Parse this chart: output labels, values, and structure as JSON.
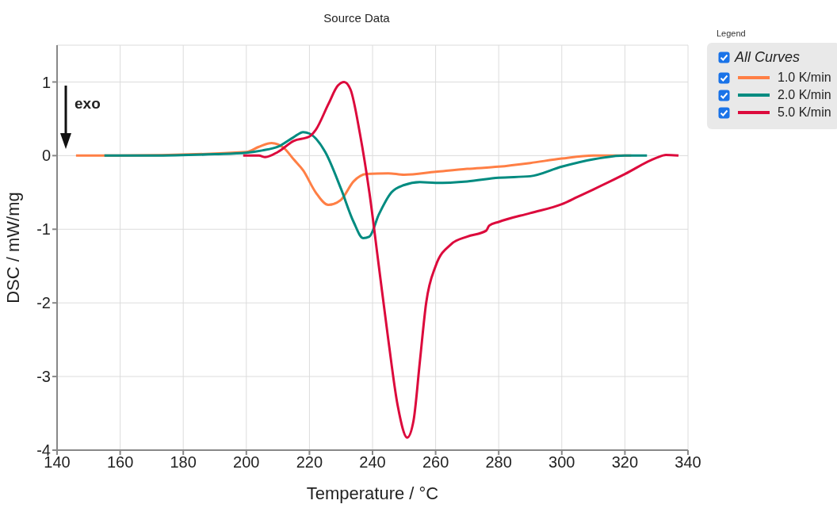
{
  "chart_data": {
    "type": "line",
    "title": "Source Data",
    "xlabel": "Temperature / °C",
    "ylabel": "DSC / mW/mg",
    "legend_title": "Legend",
    "annotations": [
      "All Curves",
      "exo"
    ],
    "xlim": [
      140,
      340
    ],
    "xticks": [
      140,
      160,
      180,
      200,
      220,
      240,
      260,
      280,
      300,
      320,
      340
    ],
    "ylim": [
      -4,
      1.5
    ],
    "yticks": [
      -4,
      -3,
      -2,
      -1,
      0,
      1
    ],
    "grid": true,
    "legend": "top right",
    "marker": "none",
    "line_style": "solid",
    "series": [
      {
        "name": "1.0 K/min",
        "color": "#ff7f45",
        "x": [
          146,
          160,
          200,
          204,
          208,
          212,
          215,
          218,
          222,
          226,
          230,
          234,
          238,
          245,
          250,
          260,
          270,
          280,
          290,
          300,
          310,
          322
        ],
        "values": [
          0,
          0,
          0.05,
          0.12,
          0.17,
          0.1,
          -0.05,
          -0.2,
          -0.5,
          -0.67,
          -0.6,
          -0.35,
          -0.25,
          -0.24,
          -0.26,
          -0.22,
          -0.18,
          -0.15,
          -0.1,
          -0.04,
          0,
          0
        ]
      },
      {
        "name": "2.0 K/min",
        "color": "#008b80",
        "x": [
          155,
          170,
          190,
          200,
          205,
          210,
          215,
          218,
          220,
          225,
          230,
          234,
          237,
          239,
          242,
          246,
          250,
          255,
          260,
          270,
          280,
          290,
          300,
          310,
          320,
          327
        ],
        "values": [
          0,
          0,
          0.02,
          0.04,
          0.07,
          0.12,
          0.25,
          0.32,
          0.3,
          0.05,
          -0.45,
          -0.9,
          -1.12,
          -1.1,
          -0.8,
          -0.5,
          -0.4,
          -0.36,
          -0.37,
          -0.35,
          -0.3,
          -0.28,
          -0.15,
          -0.05,
          0,
          0
        ]
      },
      {
        "name": "5.0 K/min",
        "color": "#dc0a3c",
        "x": [
          199,
          204,
          206,
          210,
          215,
          220,
          222,
          226,
          229,
          231,
          233,
          236,
          239,
          242,
          245,
          248,
          251,
          253,
          255,
          257,
          260,
          265,
          270,
          276,
          277,
          280,
          290,
          300,
          305,
          310,
          320,
          330,
          333,
          337
        ],
        "values": [
          0,
          0,
          -0.02,
          0.05,
          0.2,
          0.26,
          0.35,
          0.7,
          0.95,
          1,
          0.9,
          0.3,
          -0.5,
          -1.5,
          -2.5,
          -3.4,
          -3.83,
          -3.6,
          -2.8,
          -2,
          -1.5,
          -1.2,
          -1.1,
          -1.02,
          -0.95,
          -0.9,
          -0.78,
          -0.66,
          -0.56,
          -0.46,
          -0.25,
          -0.03,
          0.01,
          0
        ]
      }
    ]
  }
}
